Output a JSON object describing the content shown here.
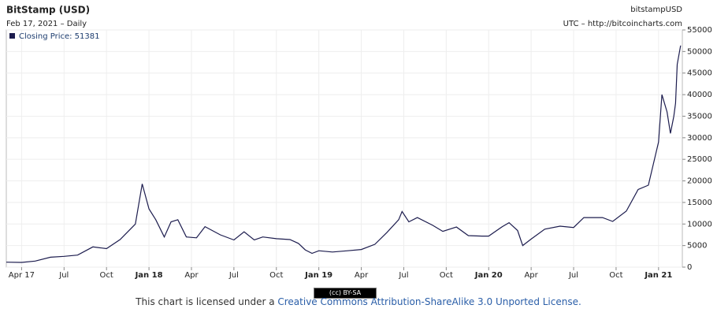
{
  "chart_data": {
    "type": "line",
    "title": "BitStamp (USD)",
    "subtitle": "Feb 17, 2021 – Daily",
    "symbol": "bitstampUSD",
    "source": "UTC – http://bitcoincharts.com",
    "x": [
      2017.16,
      2017.25,
      2017.33,
      2017.42,
      2017.5,
      2017.58,
      2017.67,
      2017.75,
      2017.83,
      2017.92,
      2017.96,
      2018.0,
      2018.04,
      2018.09,
      2018.13,
      2018.17,
      2018.22,
      2018.28,
      2018.33,
      2018.42,
      2018.5,
      2018.56,
      2018.62,
      2018.67,
      2018.75,
      2018.83,
      2018.88,
      2018.92,
      2018.96,
      2019.0,
      2019.08,
      2019.17,
      2019.25,
      2019.33,
      2019.4,
      2019.47,
      2019.49,
      2019.53,
      2019.58,
      2019.67,
      2019.73,
      2019.81,
      2019.88,
      2019.96,
      2020.0,
      2020.08,
      2020.12,
      2020.17,
      2020.2,
      2020.25,
      2020.33,
      2020.42,
      2020.5,
      2020.56,
      2020.67,
      2020.73,
      2020.81,
      2020.88,
      2020.94,
      2021.0,
      2021.02,
      2021.05,
      2021.07,
      2021.09,
      2021.1,
      2021.11,
      2021.13
    ],
    "series": [
      {
        "name": "Closing Price: 51381",
        "color": "#1c1c4e",
        "values": [
          1150,
          1100,
          1400,
          2300,
          2500,
          2800,
          4700,
          4300,
          6400,
          10000,
          19300,
          13500,
          11000,
          7000,
          10500,
          11000,
          7000,
          6800,
          9400,
          7500,
          6300,
          8200,
          6300,
          7000,
          6600,
          6400,
          5500,
          4000,
          3200,
          3800,
          3500,
          3800,
          4100,
          5300,
          8000,
          11000,
          12900,
          10500,
          11500,
          9700,
          8300,
          9300,
          7300,
          7200,
          7200,
          9400,
          10300,
          8500,
          5000,
          6500,
          8800,
          9500,
          9200,
          11500,
          11500,
          10600,
          13000,
          18000,
          19000,
          29000,
          40000,
          36000,
          31000,
          35000,
          38000,
          47000,
          51381
        ]
      }
    ],
    "xlim": [
      2017.16,
      2021.14
    ],
    "xticks": [
      {
        "value": 2017.25,
        "label": "Apr 17"
      },
      {
        "value": 2017.5,
        "label": "Jul"
      },
      {
        "value": 2017.75,
        "label": "Oct"
      },
      {
        "value": 2018.0,
        "label": "Jan 18"
      },
      {
        "value": 2018.25,
        "label": "Apr"
      },
      {
        "value": 2018.5,
        "label": "Jul"
      },
      {
        "value": 2018.75,
        "label": "Oct"
      },
      {
        "value": 2019.0,
        "label": "Jan 19"
      },
      {
        "value": 2019.25,
        "label": "Apr"
      },
      {
        "value": 2019.5,
        "label": "Jul"
      },
      {
        "value": 2019.75,
        "label": "Oct"
      },
      {
        "value": 2020.0,
        "label": "Jan 20"
      },
      {
        "value": 2020.25,
        "label": "Apr"
      },
      {
        "value": 2020.5,
        "label": "Jul"
      },
      {
        "value": 2020.75,
        "label": "Oct"
      },
      {
        "value": 2021.0,
        "label": "Jan 21"
      }
    ],
    "ylim": [
      0,
      55000
    ],
    "yticks": [
      0,
      5000,
      10000,
      15000,
      20000,
      25000,
      30000,
      35000,
      40000,
      45000,
      50000,
      55000
    ],
    "grid": true,
    "license_text": "This chart is licensed under a ",
    "license_link": "Creative Commons Attribution-ShareAlike 3.0 Unported License.",
    "badge": "(cc) BY-SA"
  }
}
